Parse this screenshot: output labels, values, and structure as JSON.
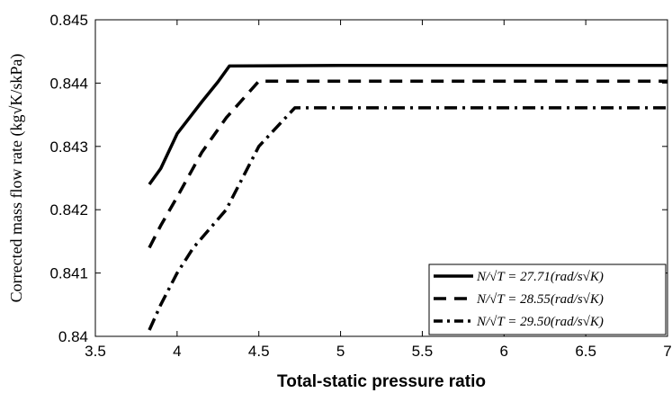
{
  "chart_data": {
    "type": "line",
    "title": "",
    "xlabel": "Total-static pressure ratio",
    "ylabel": "Corrected mass flow rate (kg√K/skPa)",
    "xlim": [
      3.5,
      7
    ],
    "ylim": [
      0.84,
      0.845
    ],
    "x_ticks": [
      "3.5",
      "4",
      "4.5",
      "5",
      "5.5",
      "6",
      "6.5",
      "7"
    ],
    "y_ticks": [
      "0.84",
      "0.841",
      "0.842",
      "0.843",
      "0.844",
      "0.845"
    ],
    "grid": false,
    "legend_position": "bottom-right",
    "series": [
      {
        "name": "N/√T = 27.71(rad/s√K)",
        "line_style": "solid",
        "color": "#000000",
        "x": [
          3.83,
          3.9,
          4.0,
          4.15,
          4.25,
          4.32,
          5.0,
          6.0,
          7.0
        ],
        "y": [
          0.8424,
          0.84265,
          0.8432,
          0.8437,
          0.84402,
          0.84427,
          0.84428,
          0.84428,
          0.84428
        ]
      },
      {
        "name": "N/√T = 28.55(rad/s√K)",
        "line_style": "dashed",
        "color": "#000000",
        "x": [
          3.83,
          3.9,
          4.0,
          4.15,
          4.3,
          4.5,
          5.0,
          6.0,
          7.0
        ],
        "y": [
          0.8414,
          0.84175,
          0.8422,
          0.8429,
          0.84345,
          0.84403,
          0.84403,
          0.84403,
          0.84403
        ]
      },
      {
        "name": "N/√T = 29.50(rad/s√K)",
        "line_style": "dashdot",
        "color": "#000000",
        "x": [
          3.83,
          3.9,
          4.0,
          4.1,
          4.3,
          4.5,
          4.72,
          5.0,
          6.0,
          7.0
        ],
        "y": [
          0.8401,
          0.8405,
          0.841,
          0.8414,
          0.842,
          0.843,
          0.84361,
          0.84361,
          0.84361,
          0.84361
        ]
      }
    ]
  }
}
